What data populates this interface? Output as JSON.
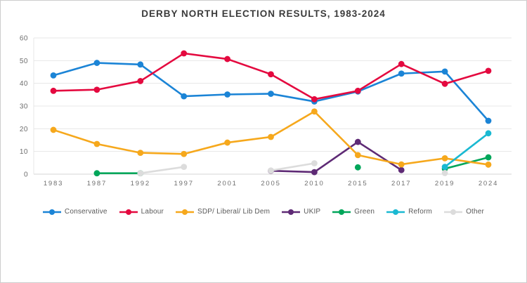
{
  "chart_data": {
    "type": "line",
    "title": "DERBY NORTH ELECTION RESULTS, 1983-2024",
    "xlabel": "",
    "ylabel": "",
    "categories": [
      "1983",
      "1987",
      "1992",
      "1997",
      "2001",
      "2005",
      "2010",
      "2015",
      "2017",
      "2019",
      "2024"
    ],
    "y_axis": {
      "min": 0,
      "max": 60,
      "step": 10,
      "ticks": [
        "0",
        "10",
        "20",
        "30",
        "40",
        "50",
        "60"
      ]
    },
    "grid": true,
    "legend_position": "bottom",
    "series": [
      {
        "name": "Conservative",
        "color": "#1b84d6",
        "values": [
          43.5,
          49.0,
          48.3,
          34.3,
          35.1,
          35.4,
          32.0,
          36.4,
          44.3,
          45.2,
          23.5
        ]
      },
      {
        "name": "Labour",
        "color": "#e4093f",
        "values": [
          36.7,
          37.2,
          41.0,
          53.2,
          50.7,
          44.0,
          33.0,
          36.7,
          48.5,
          39.8,
          45.5
        ]
      },
      {
        "name": "SDP/ Liberal/ Lib Dem",
        "color": "#f6a81c",
        "values": [
          19.5,
          13.3,
          9.4,
          8.9,
          13.9,
          16.4,
          27.6,
          8.4,
          4.3,
          7.0,
          4.2
        ]
      },
      {
        "name": "UKIP",
        "color": "#5e2a75",
        "values": [
          null,
          null,
          null,
          null,
          null,
          1.5,
          0.9,
          14.2,
          1.8,
          null,
          null
        ]
      },
      {
        "name": "Green",
        "color": "#00a65a",
        "values": [
          null,
          0.4,
          0.4,
          null,
          null,
          null,
          null,
          3.0,
          null,
          2.4,
          7.4
        ]
      },
      {
        "name": "Reform",
        "color": "#1ab9d2",
        "values": [
          null,
          null,
          null,
          null,
          null,
          null,
          null,
          null,
          null,
          3.2,
          18.0
        ]
      },
      {
        "name": "Other",
        "color": "#dcdcdc",
        "values": [
          null,
          null,
          0.4,
          3.2,
          null,
          1.6,
          4.8,
          null,
          null,
          0.5,
          null
        ]
      }
    ],
    "style_colors": {
      "grid_line": "#e7e7e7",
      "baseline": "#d6d6d6",
      "tick_label": "#6e6e6e",
      "title_text": "#3b3b3b",
      "legend_text": "#595959"
    }
  }
}
